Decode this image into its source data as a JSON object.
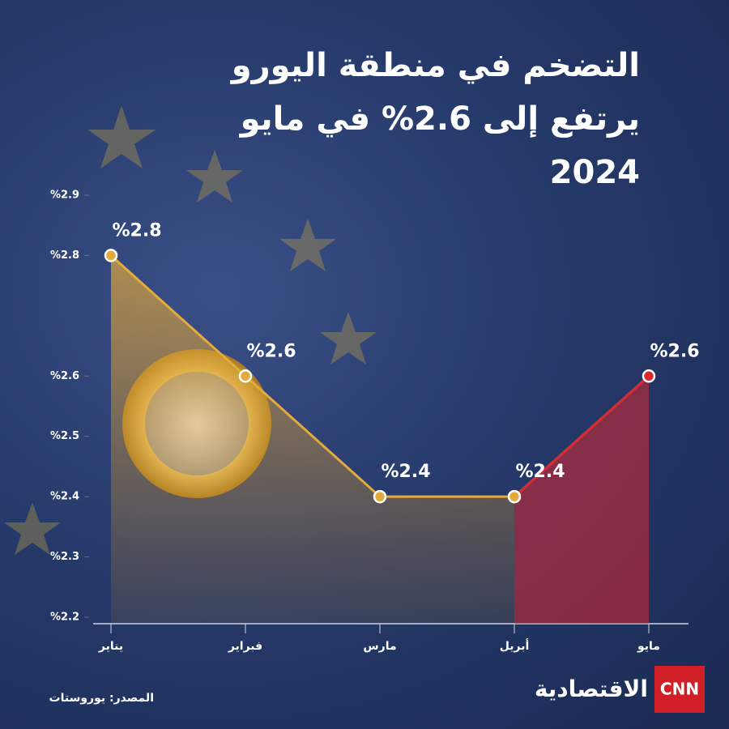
{
  "chart_data": {
    "type": "line",
    "title": "التضخم في منطقة اليورو يرتفع إلى 2.6% في مايو 2024",
    "categories": [
      "يناير",
      "فبراير",
      "مارس",
      "أبريل",
      "مايو"
    ],
    "series": [
      {
        "color": "#e3aa3c",
        "highlight_color": "#d9282f",
        "values": [
          2.8,
          2.6,
          2.4,
          2.4,
          2.6
        ],
        "value_labels": [
          "%2.8",
          "%2.6",
          "%2.4",
          "%2.4",
          "%2.6"
        ]
      }
    ],
    "ylim": [
      2.2,
      2.9
    ],
    "yticks": [
      {
        "value": 2.9,
        "label": "%2.9"
      },
      {
        "value": 2.8,
        "label": "%2.8"
      },
      {
        "value": 2.6,
        "label": "%2.6"
      },
      {
        "value": 2.5,
        "label": "%2.5"
      },
      {
        "value": 2.4,
        "label": "%2.4"
      },
      {
        "value": 2.3,
        "label": "%2.3"
      },
      {
        "value": 2.2,
        "label": "%2.2"
      }
    ],
    "source": "المصدر: يوروستات",
    "brand": "الاقتصادية",
    "brand_logo": "CNN"
  }
}
